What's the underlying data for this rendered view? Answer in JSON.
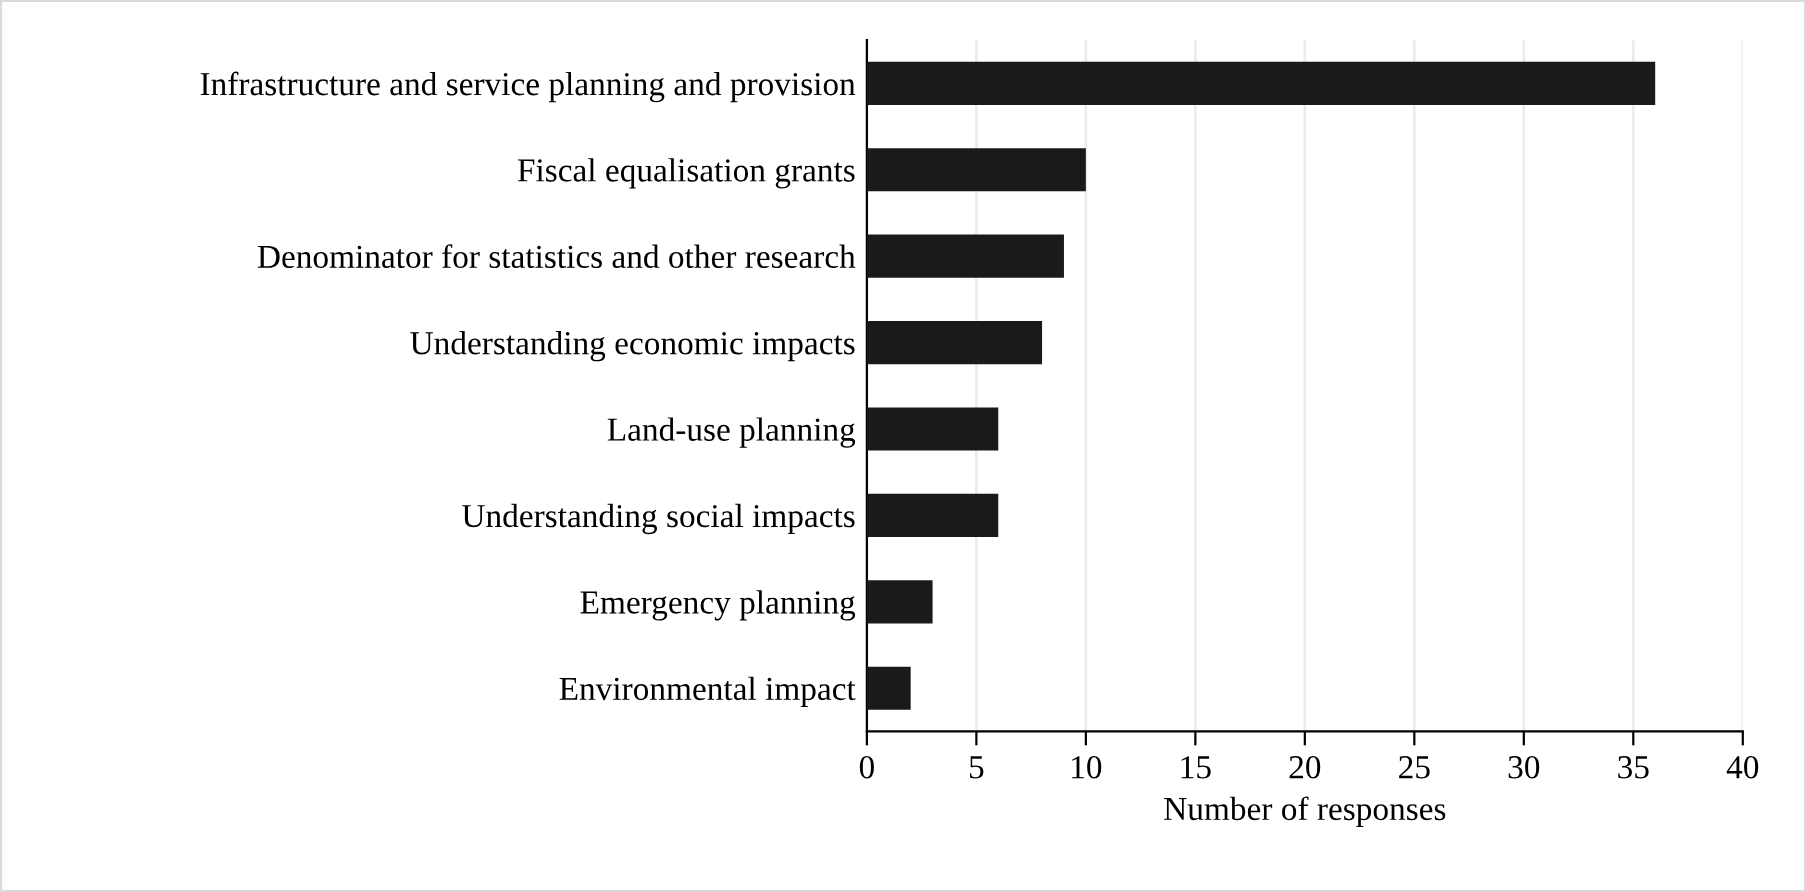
{
  "chart_data": {
    "type": "bar",
    "orientation": "horizontal",
    "xlabel": "Number of responses",
    "categories": [
      "Infrastructure and service planning and provision",
      "Fiscal equalisation grants",
      "Denominator for statistics and other research",
      "Understanding economic impacts",
      "Land-use planning",
      "Understanding social impacts",
      "Emergency planning",
      "Environmental impact"
    ],
    "values": [
      36,
      10,
      9,
      8,
      6,
      6,
      3,
      2
    ],
    "color": "#1a1a1a",
    "xlim": [
      0,
      40
    ],
    "xticks": [
      0,
      5,
      10,
      15,
      20,
      25,
      30,
      35,
      40
    ],
    "grid": "x"
  }
}
